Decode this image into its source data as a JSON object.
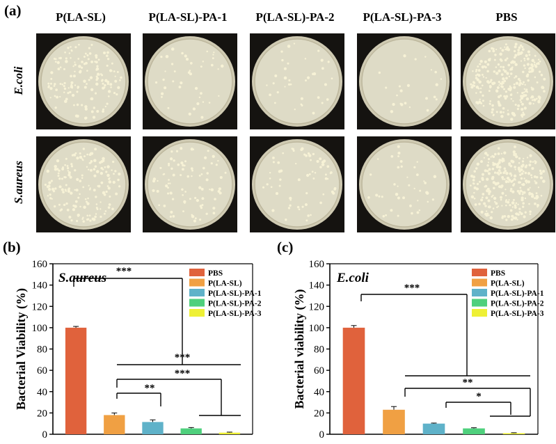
{
  "figure": {
    "panel_a_label": "(a)",
    "panel_b_label": "(b)",
    "panel_c_label": "(c)",
    "column_headers": [
      "P(LA-SL)",
      "P(LA-SL)-PA-1",
      "P(LA-SL)-PA-2",
      "P(LA-SL)-PA-3",
      "PBS"
    ],
    "row_labels": [
      "E.coli",
      "S.aureus"
    ],
    "colony_density": [
      [
        0.55,
        0.12,
        0.1,
        0.05,
        1.0
      ],
      [
        0.6,
        0.3,
        0.22,
        0.12,
        1.0
      ]
    ],
    "colors": {
      "PBS": "#e0623c",
      "P(LA-SL)": "#f0a043",
      "P(LA-SL)-PA-1": "#5fb2c9",
      "P(LA-SL)-PA-2": "#4fd07d",
      "P(LA-SL)-PA-3": "#eef035",
      "plate_background": "#151310",
      "agar": "#dedbc6",
      "colony": "#f7f2d6"
    }
  },
  "chart_data": [
    {
      "type": "bar",
      "panel": "(b)",
      "inset_title": "S.aureus",
      "ylabel": "Bacterial Viability (%)",
      "xlabel": "",
      "ylim": [
        0,
        160
      ],
      "yticks": [
        "0",
        "20",
        "40",
        "60",
        "80",
        "100",
        "120",
        "140",
        "160"
      ],
      "categories": [
        "PBS",
        "P(LA-SL)",
        "P(LA-SL)-PA-1",
        "P(LA-SL)-PA-2",
        "P(LA-SL)-PA-3"
      ],
      "values": [
        100,
        18,
        11.5,
        5.5,
        1.5
      ],
      "errors": [
        1.2,
        2.0,
        2.0,
        0.8,
        0.5
      ],
      "legend": [
        "PBS",
        "P(LA-SL)",
        "P(LA-SL)-PA-1",
        "P(LA-SL)-PA-2",
        "P(LA-SL)-PA-3"
      ],
      "legend_position": "top-right",
      "significance": [
        "***",
        "***",
        "**"
      ]
    },
    {
      "type": "bar",
      "panel": "(c)",
      "inset_title": "E.coli",
      "ylabel": "Bacterial viability (%)",
      "xlabel": "",
      "ylim": [
        0,
        160
      ],
      "yticks": [
        "0",
        "20",
        "40",
        "60",
        "80",
        "100",
        "120",
        "140",
        "160"
      ],
      "categories": [
        "PBS",
        "P(LA-SL)",
        "P(LA-SL)-PA-1",
        "P(LA-SL)-PA-2",
        "P(LA-SL)-PA-3"
      ],
      "values": [
        100,
        23,
        10,
        5.5,
        1
      ],
      "errors": [
        2.0,
        3.0,
        0.5,
        0.6,
        0.4
      ],
      "legend": [
        "PBS",
        "P(LA-SL)",
        "P(LA-SL)-PA-1",
        "P(LA-SL)-PA-2",
        "P(LA-SL)-PA-3"
      ],
      "legend_position": "top-right",
      "significance": [
        "***",
        "**",
        "*"
      ]
    }
  ]
}
